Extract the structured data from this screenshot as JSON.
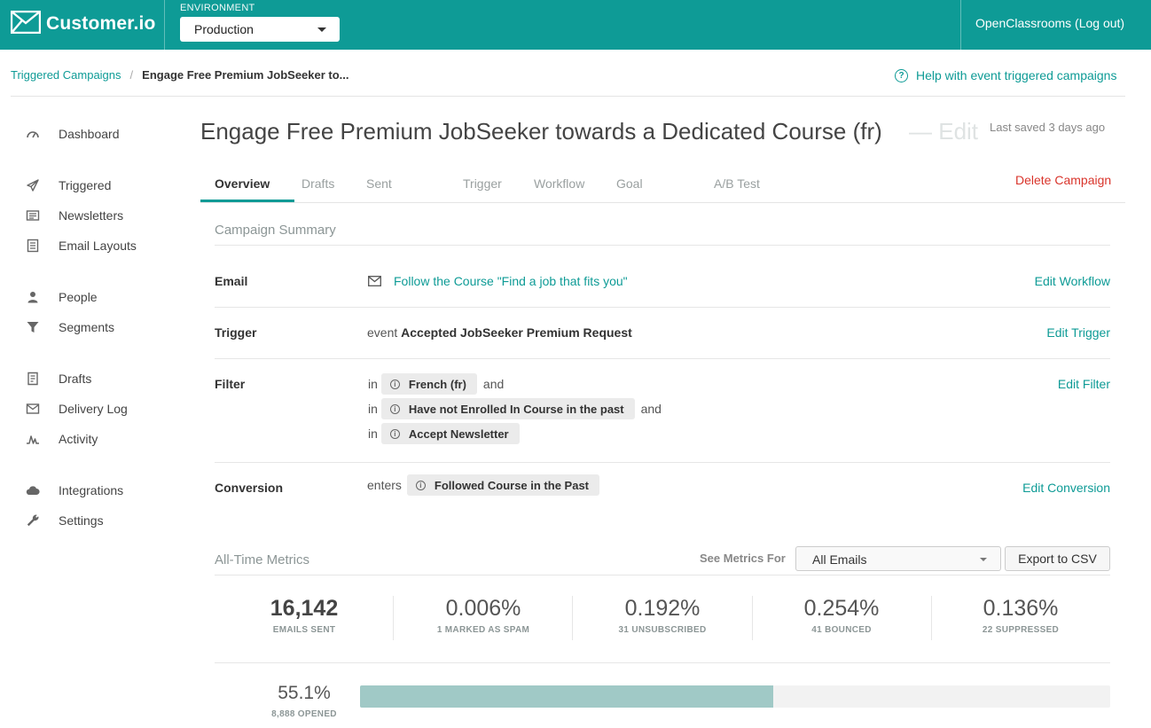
{
  "header": {
    "brand": "Customer.io",
    "environment_label": "ENVIRONMENT",
    "environment_value": "Production",
    "account": "OpenClassrooms (Log out)"
  },
  "breadcrumb": {
    "parent": "Triggered Campaigns",
    "separator": "/",
    "current": "Engage Free Premium JobSeeker to..."
  },
  "help": {
    "label": "Help with event triggered campaigns",
    "icon": "question-circle-icon"
  },
  "sidebar": {
    "items": [
      {
        "label": "Dashboard",
        "icon": "dashboard-gauge-icon"
      },
      {
        "label": "Triggered",
        "icon": "paper-plane-icon"
      },
      {
        "label": "Newsletters",
        "icon": "newspaper-icon"
      },
      {
        "label": "Email Layouts",
        "icon": "layout-icon"
      },
      {
        "label": "People",
        "icon": "person-icon"
      },
      {
        "label": "Segments",
        "icon": "funnel-icon"
      },
      {
        "label": "Drafts",
        "icon": "draft-document-icon"
      },
      {
        "label": "Delivery Log",
        "icon": "envelope-log-icon"
      },
      {
        "label": "Activity",
        "icon": "activity-pulse-icon"
      },
      {
        "label": "Integrations",
        "icon": "cloud-icon"
      },
      {
        "label": "Settings",
        "icon": "wrench-icon"
      }
    ]
  },
  "campaign": {
    "title": "Engage Free Premium JobSeeker towards a Dedicated Course (fr)",
    "edit_label": "— Edit",
    "last_saved": "Last saved 3 days ago",
    "delete_label": "Delete Campaign"
  },
  "tabs": [
    {
      "label": "Overview",
      "active": true
    },
    {
      "label": "Drafts",
      "active": false
    },
    {
      "label": "Sent",
      "active": false
    },
    {
      "label": "Trigger",
      "active": false
    },
    {
      "label": "Workflow",
      "active": false
    },
    {
      "label": "Goal",
      "active": false
    },
    {
      "label": "A/B Test",
      "active": false
    }
  ],
  "summary": {
    "title": "Campaign Summary",
    "email": {
      "label": "Email",
      "value": "Follow the Course \"Find a job that fits you\"",
      "action": "Edit Workflow"
    },
    "trigger": {
      "label": "Trigger",
      "prefix": "event",
      "value": "Accepted JobSeeker Premium Request",
      "action": "Edit Trigger"
    },
    "filter": {
      "label": "Filter",
      "action": "Edit Filter",
      "lines": [
        {
          "prefix": "in",
          "chip": "French (fr)",
          "suffix": "and"
        },
        {
          "prefix": "in",
          "chip": "Have not Enrolled In Course in the past",
          "suffix": "and"
        },
        {
          "prefix": "in",
          "chip": "Accept Newsletter",
          "suffix": ""
        }
      ]
    },
    "conversion": {
      "label": "Conversion",
      "prefix": "enters",
      "chip": "Followed Course in the Past",
      "action": "Edit Conversion"
    }
  },
  "metrics": {
    "title": "All-Time Metrics",
    "see_for_label": "See Metrics For",
    "selected": "All Emails",
    "export_label": "Export to CSV",
    "stats": [
      {
        "value": "16,142",
        "label": "EMAILS SENT"
      },
      {
        "value": "0.006%",
        "label": "1 MARKED AS SPAM"
      },
      {
        "value": "0.192%",
        "label": "31 UNSUBSCRIBED"
      },
      {
        "value": "0.254%",
        "label": "41 BOUNCED"
      },
      {
        "value": "0.136%",
        "label": "22 SUPPRESSED"
      }
    ],
    "opened": {
      "value": "55.1%",
      "label": "8,888 OPENED",
      "fraction": 0.551
    }
  },
  "colors": {
    "brand": "#0e9b96",
    "danger": "#d9342b",
    "bar_fill": "#a0c9c6"
  }
}
